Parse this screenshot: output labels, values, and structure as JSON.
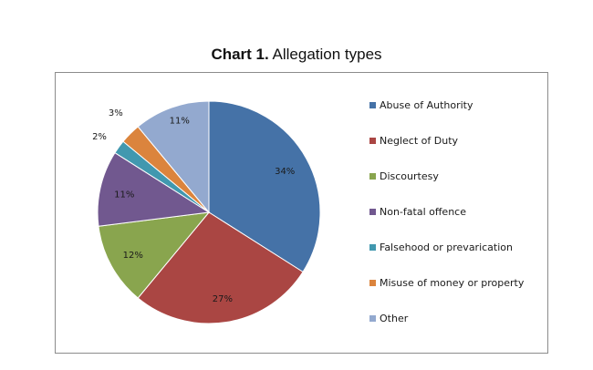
{
  "title": {
    "prefix": "Chart 1.",
    "text": "Allegation types"
  },
  "chart_data": {
    "type": "pie",
    "title": "Chart 1. Allegation types",
    "legend_position": "right",
    "slices": [
      {
        "label": "Abuse of Authority",
        "value": 34,
        "value_label": "34%",
        "color": "#4572A7"
      },
      {
        "label": "Neglect of Duty",
        "value": 27,
        "value_label": "27%",
        "color": "#AA4643"
      },
      {
        "label": "Discourtesy",
        "value": 12,
        "value_label": "12%",
        "color": "#89A54E"
      },
      {
        "label": "Non-fatal offence",
        "value": 11,
        "value_label": "11%",
        "color": "#71588F"
      },
      {
        "label": "Falsehood or prevarication",
        "value": 2,
        "value_label": "2%",
        "color": "#4198AF"
      },
      {
        "label": "Misuse of money or property",
        "value": 3,
        "value_label": "3%",
        "color": "#DB843D"
      },
      {
        "label": "Other",
        "value": 11,
        "value_label": "11%",
        "color": "#93A9CF"
      }
    ]
  }
}
